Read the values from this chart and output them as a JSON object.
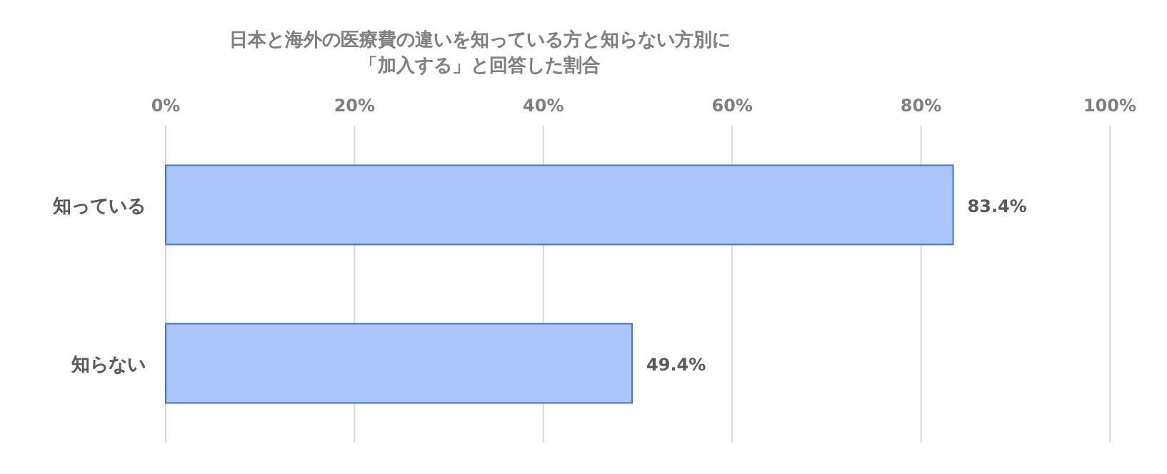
{
  "chart_data": {
    "type": "bar",
    "orientation": "horizontal",
    "title": "日本と海外の医療費の違いを知っている方と知らない方別に「加入する」と回答した割合",
    "categories": [
      "知っている",
      "知らない"
    ],
    "series": [
      {
        "color": "#a9c5fa",
        "values": [
          83.4,
          49.4
        ],
        "value_labels": [
          "83.4%",
          "49.4%"
        ]
      }
    ],
    "xlim": [
      0,
      100
    ],
    "xticks": [
      {
        "value": 0,
        "label": "0%"
      },
      {
        "value": 20,
        "label": "20%"
      },
      {
        "value": 40,
        "label": "40%"
      },
      {
        "value": 60,
        "label": "60%"
      },
      {
        "value": 80,
        "label": "80%"
      },
      {
        "value": 100,
        "label": "100%"
      }
    ],
    "grid": "x"
  }
}
